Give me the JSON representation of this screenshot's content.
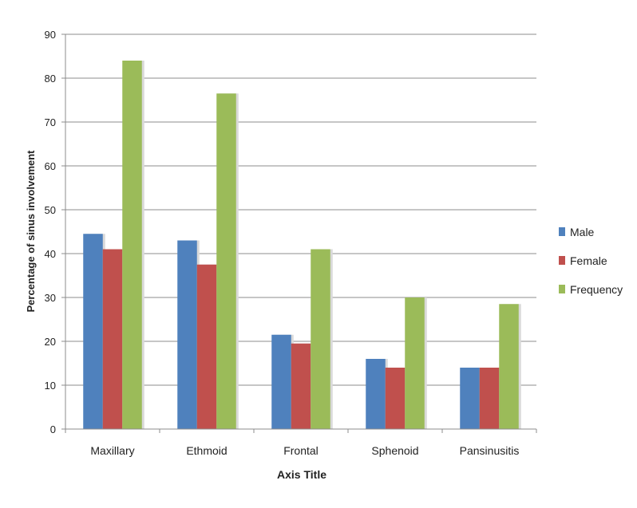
{
  "chart_data": {
    "type": "bar",
    "title": "",
    "xlabel": "Axis Title",
    "ylabel": "Percentage of sinus involvement",
    "categories": [
      "Maxillary",
      "Ethmoid",
      "Frontal",
      "Sphenoid",
      "Pansinusitis"
    ],
    "series": [
      {
        "name": "Male",
        "color": "#4F81BD",
        "values": [
          44.5,
          43,
          21.5,
          16,
          14
        ]
      },
      {
        "name": "Female",
        "color": "#C0504D",
        "values": [
          41,
          37.5,
          19.5,
          14,
          14
        ]
      },
      {
        "name": "Frequency",
        "color": "#9BBB59",
        "values": [
          84,
          76.5,
          41,
          30,
          28.5
        ]
      }
    ],
    "ylim": [
      0,
      90
    ],
    "yticks": [
      "0",
      "10",
      "20",
      "30",
      "40",
      "50",
      "60",
      "70",
      "80",
      "90"
    ],
    "grid": true,
    "legend_position": "right"
  }
}
